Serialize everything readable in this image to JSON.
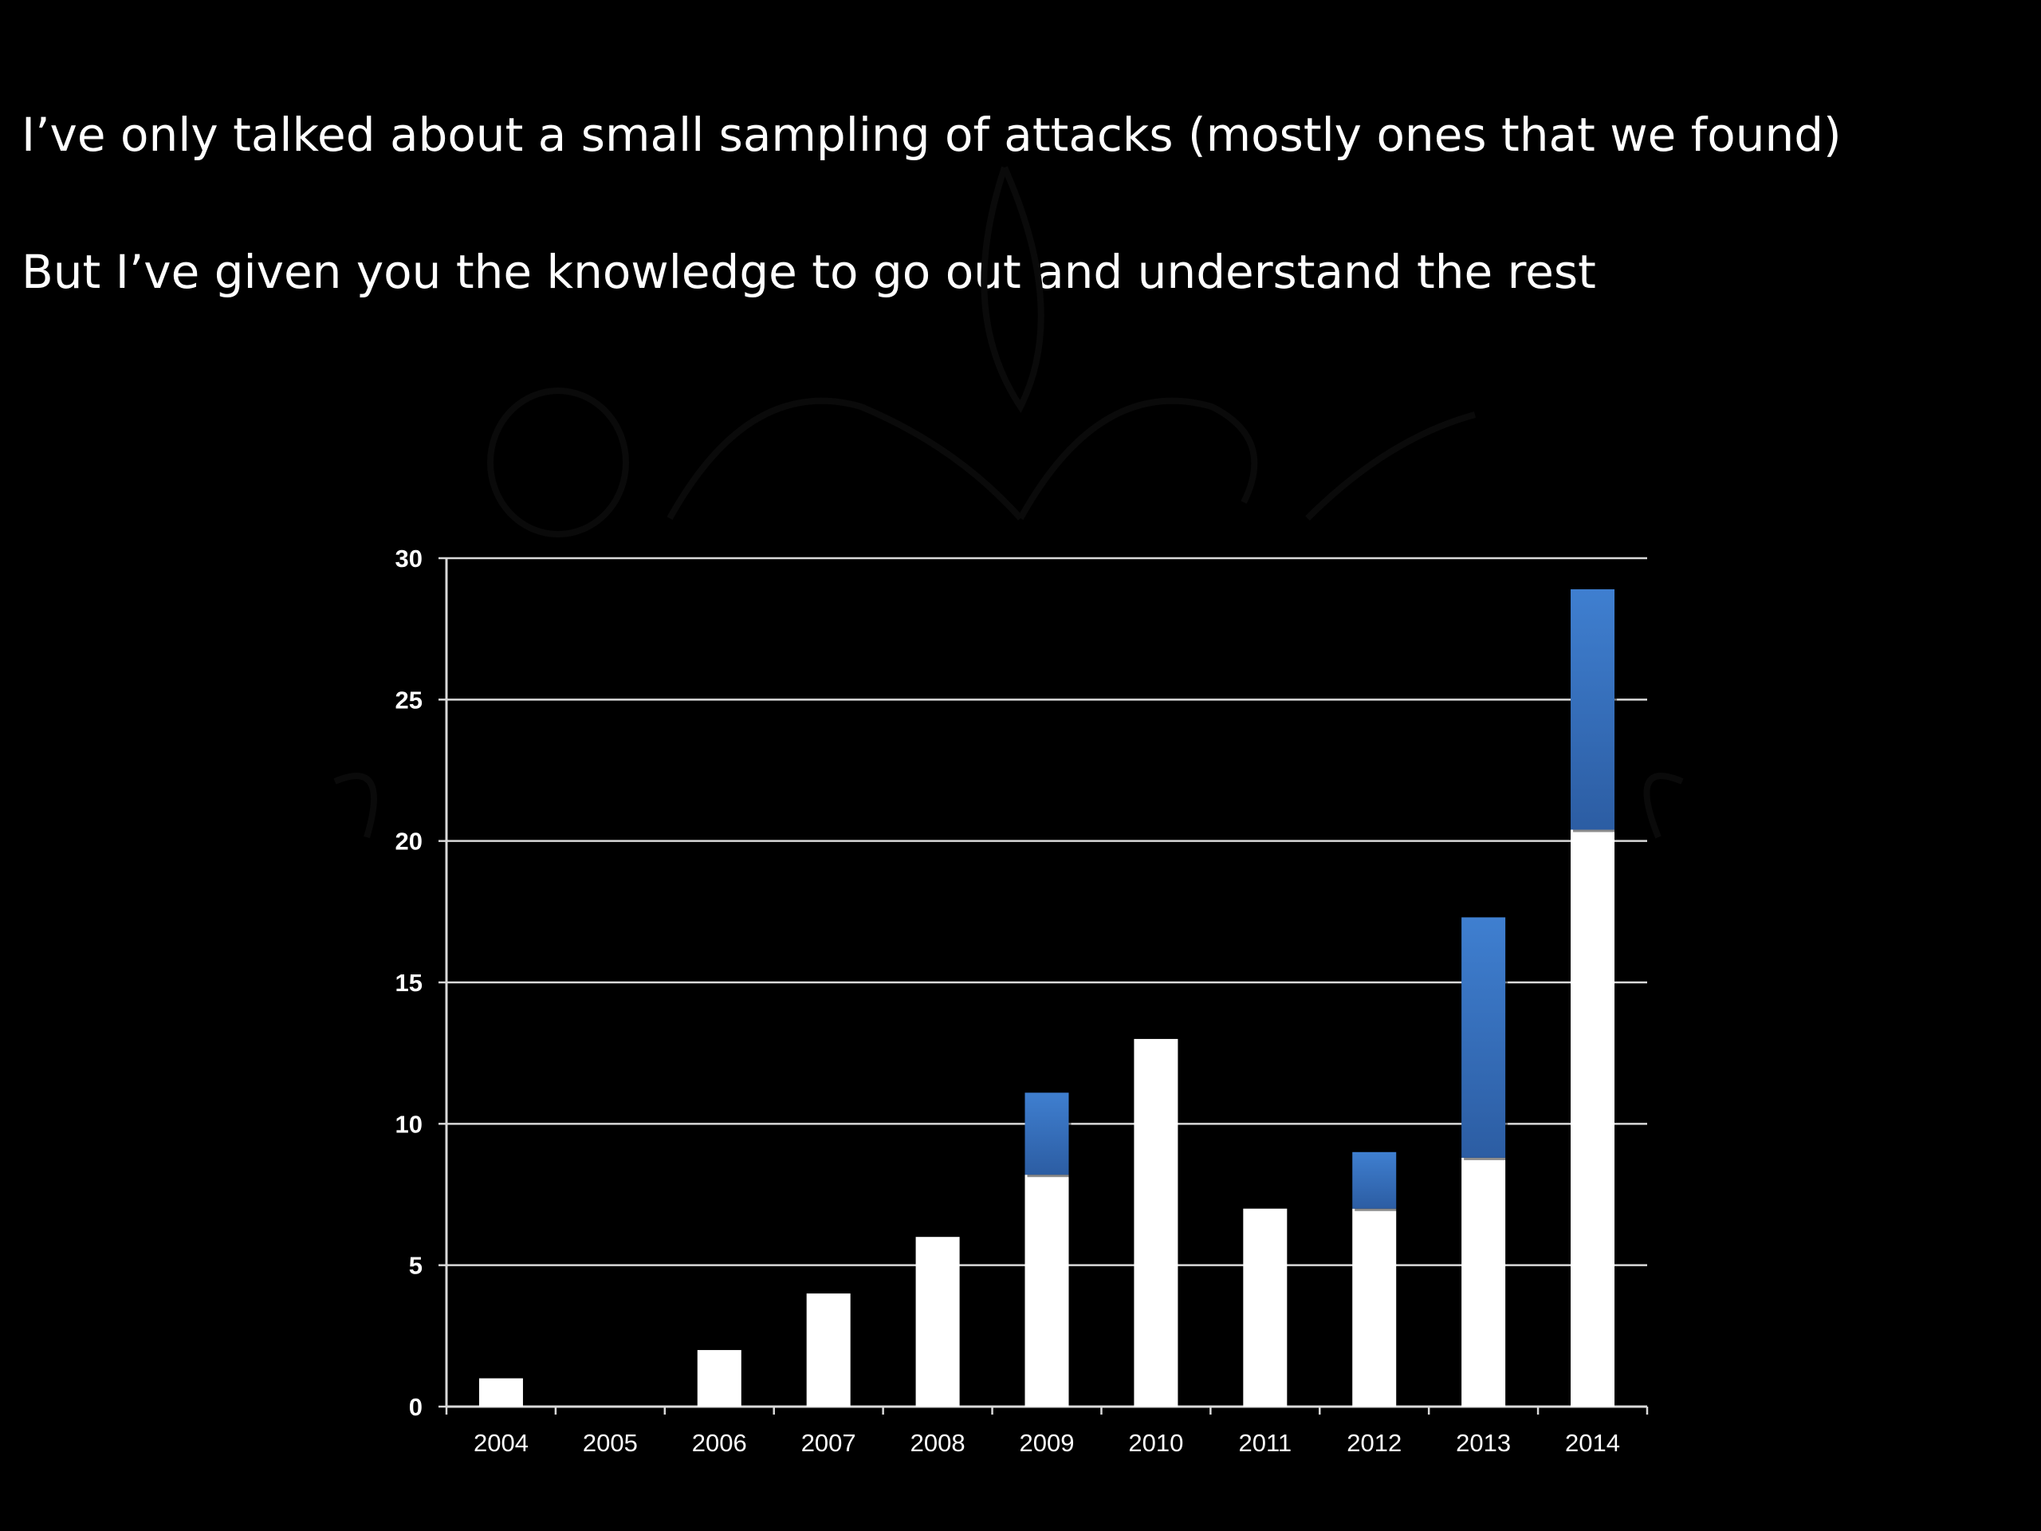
{
  "slide": {
    "line1": "I’ve only talked about a small sampling of attacks (mostly ones that we found)",
    "line2": "But I’ve given you the knowledge to go out and understand the rest"
  },
  "colors": {
    "background": "#000000",
    "bar_base": "#ffffff",
    "bar_overlay": "#3a73c4",
    "gridline": "#d9d9d9",
    "text": "#ffffff"
  },
  "chart_data": {
    "type": "bar",
    "stacked": true,
    "title": "",
    "xlabel": "",
    "ylabel": "",
    "categories": [
      "2004",
      "2005",
      "2006",
      "2007",
      "2008",
      "2009",
      "2010",
      "2011",
      "2012",
      "2013",
      "2014"
    ],
    "series": [
      {
        "values": [
          1,
          0,
          2,
          4,
          6,
          8.2,
          13,
          7,
          7,
          8.8,
          20.4
        ],
        "color": "#ffffff"
      },
      {
        "values": [
          0,
          0,
          0,
          0,
          0,
          2.9,
          0,
          0,
          2.0,
          8.5,
          8.5
        ],
        "color": "#3a73c4"
      }
    ],
    "ylim": [
      0,
      30
    ],
    "yticks": [
      0,
      5,
      10,
      15,
      20,
      25,
      30
    ],
    "grid": true,
    "legend": "none"
  }
}
